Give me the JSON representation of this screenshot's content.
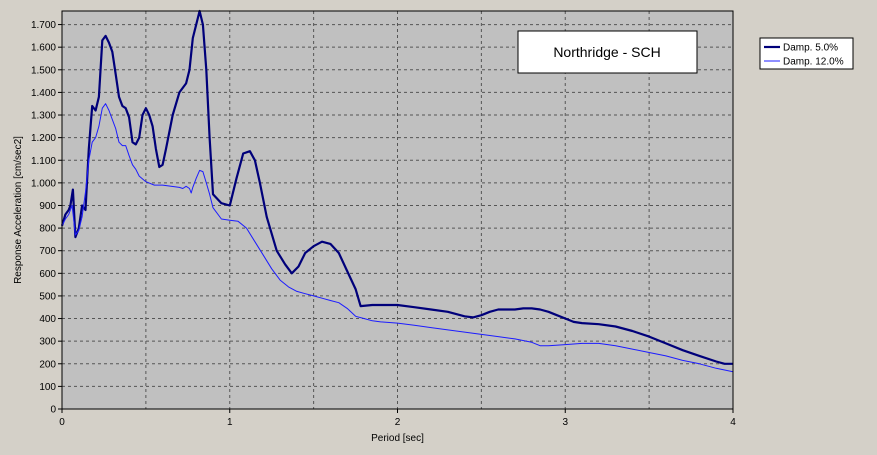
{
  "chart_data": {
    "type": "line",
    "title": "Northridge - SCH",
    "xlabel": "Period [sec]",
    "ylabel": "Response Acceleration [cm/sec2]",
    "xlim": [
      0,
      4
    ],
    "ylim": [
      0,
      1760
    ],
    "x_ticks": [
      0,
      1,
      2,
      3,
      4
    ],
    "y_ticks": [
      0,
      100,
      200,
      300,
      400,
      500,
      600,
      700,
      800,
      900,
      1000,
      1100,
      1200,
      1300,
      1400,
      1500,
      1600,
      1700
    ],
    "x_tick_labels": [
      "0",
      "1",
      "2",
      "3",
      "4"
    ],
    "y_tick_labels": [
      "0",
      "100",
      "200",
      "300",
      "400",
      "500",
      "600",
      "700",
      "800",
      "900",
      "1.000",
      "1.100",
      "1.200",
      "1.300",
      "1.400",
      "1.500",
      "1.600",
      "1.700"
    ],
    "grid": true,
    "legend_position": "outside-top-right",
    "series": [
      {
        "name": "Damp. 5.0%",
        "color": "#00007a",
        "points": [
          [
            0,
            810
          ],
          [
            0.02,
            860
          ],
          [
            0.04,
            880
          ],
          [
            0.05,
            900
          ],
          [
            0.065,
            970
          ],
          [
            0.08,
            760
          ],
          [
            0.1,
            800
          ],
          [
            0.12,
            900
          ],
          [
            0.14,
            880
          ],
          [
            0.16,
            1150
          ],
          [
            0.18,
            1340
          ],
          [
            0.2,
            1320
          ],
          [
            0.22,
            1380
          ],
          [
            0.24,
            1630
          ],
          [
            0.26,
            1650
          ],
          [
            0.28,
            1620
          ],
          [
            0.3,
            1580
          ],
          [
            0.32,
            1480
          ],
          [
            0.34,
            1380
          ],
          [
            0.36,
            1340
          ],
          [
            0.38,
            1330
          ],
          [
            0.4,
            1290
          ],
          [
            0.42,
            1180
          ],
          [
            0.44,
            1170
          ],
          [
            0.46,
            1200
          ],
          [
            0.48,
            1300
          ],
          [
            0.5,
            1330
          ],
          [
            0.52,
            1300
          ],
          [
            0.54,
            1250
          ],
          [
            0.56,
            1150
          ],
          [
            0.58,
            1070
          ],
          [
            0.6,
            1080
          ],
          [
            0.62,
            1150
          ],
          [
            0.66,
            1300
          ],
          [
            0.7,
            1400
          ],
          [
            0.74,
            1440
          ],
          [
            0.76,
            1500
          ],
          [
            0.78,
            1640
          ],
          [
            0.8,
            1700
          ],
          [
            0.82,
            1760
          ],
          [
            0.84,
            1700
          ],
          [
            0.86,
            1500
          ],
          [
            0.88,
            1200
          ],
          [
            0.9,
            950
          ],
          [
            0.95,
            910
          ],
          [
            1.0,
            900
          ],
          [
            1.04,
            1020
          ],
          [
            1.08,
            1130
          ],
          [
            1.12,
            1140
          ],
          [
            1.15,
            1100
          ],
          [
            1.18,
            1000
          ],
          [
            1.22,
            850
          ],
          [
            1.28,
            700
          ],
          [
            1.33,
            640
          ],
          [
            1.37,
            600
          ],
          [
            1.41,
            630
          ],
          [
            1.45,
            690
          ],
          [
            1.5,
            720
          ],
          [
            1.55,
            740
          ],
          [
            1.6,
            730
          ],
          [
            1.65,
            690
          ],
          [
            1.7,
            610
          ],
          [
            1.75,
            530
          ],
          [
            1.78,
            455
          ],
          [
            1.85,
            460
          ],
          [
            1.9,
            460
          ],
          [
            2.0,
            460
          ],
          [
            2.1,
            450
          ],
          [
            2.2,
            440
          ],
          [
            2.3,
            430
          ],
          [
            2.4,
            410
          ],
          [
            2.45,
            405
          ],
          [
            2.5,
            415
          ],
          [
            2.55,
            430
          ],
          [
            2.6,
            440
          ],
          [
            2.7,
            440
          ],
          [
            2.75,
            445
          ],
          [
            2.8,
            445
          ],
          [
            2.85,
            440
          ],
          [
            2.9,
            430
          ],
          [
            2.95,
            415
          ],
          [
            3.0,
            400
          ],
          [
            3.05,
            385
          ],
          [
            3.1,
            380
          ],
          [
            3.2,
            375
          ],
          [
            3.3,
            365
          ],
          [
            3.4,
            345
          ],
          [
            3.5,
            320
          ],
          [
            3.6,
            290
          ],
          [
            3.7,
            260
          ],
          [
            3.8,
            235
          ],
          [
            3.9,
            210
          ],
          [
            3.95,
            200
          ],
          [
            4.0,
            200
          ]
        ]
      },
      {
        "name": "Damp. 12.0%",
        "color": "#1c1cff",
        "points": [
          [
            0,
            810
          ],
          [
            0.02,
            840
          ],
          [
            0.04,
            860
          ],
          [
            0.06,
            900
          ],
          [
            0.08,
            770
          ],
          [
            0.1,
            790
          ],
          [
            0.12,
            850
          ],
          [
            0.14,
            960
          ],
          [
            0.16,
            1100
          ],
          [
            0.18,
            1180
          ],
          [
            0.2,
            1200
          ],
          [
            0.22,
            1250
          ],
          [
            0.24,
            1330
          ],
          [
            0.26,
            1350
          ],
          [
            0.28,
            1320
          ],
          [
            0.3,
            1280
          ],
          [
            0.32,
            1240
          ],
          [
            0.34,
            1180
          ],
          [
            0.36,
            1165
          ],
          [
            0.38,
            1165
          ],
          [
            0.4,
            1120
          ],
          [
            0.42,
            1080
          ],
          [
            0.44,
            1060
          ],
          [
            0.46,
            1030
          ],
          [
            0.5,
            1005
          ],
          [
            0.55,
            990
          ],
          [
            0.6,
            990
          ],
          [
            0.65,
            985
          ],
          [
            0.7,
            980
          ],
          [
            0.72,
            975
          ],
          [
            0.74,
            985
          ],
          [
            0.76,
            975
          ],
          [
            0.77,
            955
          ],
          [
            0.78,
            980
          ],
          [
            0.8,
            1020
          ],
          [
            0.82,
            1055
          ],
          [
            0.84,
            1050
          ],
          [
            0.86,
            1000
          ],
          [
            0.88,
            950
          ],
          [
            0.9,
            890
          ],
          [
            0.95,
            840
          ],
          [
            1.0,
            835
          ],
          [
            1.05,
            830
          ],
          [
            1.1,
            800
          ],
          [
            1.15,
            740
          ],
          [
            1.2,
            680
          ],
          [
            1.25,
            620
          ],
          [
            1.3,
            570
          ],
          [
            1.35,
            540
          ],
          [
            1.4,
            520
          ],
          [
            1.45,
            510
          ],
          [
            1.5,
            500
          ],
          [
            1.55,
            490
          ],
          [
            1.6,
            480
          ],
          [
            1.65,
            470
          ],
          [
            1.7,
            445
          ],
          [
            1.75,
            410
          ],
          [
            1.8,
            400
          ],
          [
            1.85,
            390
          ],
          [
            1.9,
            385
          ],
          [
            2.0,
            380
          ],
          [
            2.1,
            370
          ],
          [
            2.2,
            360
          ],
          [
            2.3,
            350
          ],
          [
            2.4,
            340
          ],
          [
            2.5,
            330
          ],
          [
            2.6,
            320
          ],
          [
            2.7,
            310
          ],
          [
            2.8,
            295
          ],
          [
            2.85,
            280
          ],
          [
            2.9,
            280
          ],
          [
            3.0,
            285
          ],
          [
            3.1,
            290
          ],
          [
            3.2,
            290
          ],
          [
            3.3,
            280
          ],
          [
            3.4,
            265
          ],
          [
            3.5,
            250
          ],
          [
            3.6,
            235
          ],
          [
            3.7,
            215
          ],
          [
            3.8,
            200
          ],
          [
            3.9,
            180
          ],
          [
            4.0,
            165
          ]
        ]
      }
    ]
  }
}
